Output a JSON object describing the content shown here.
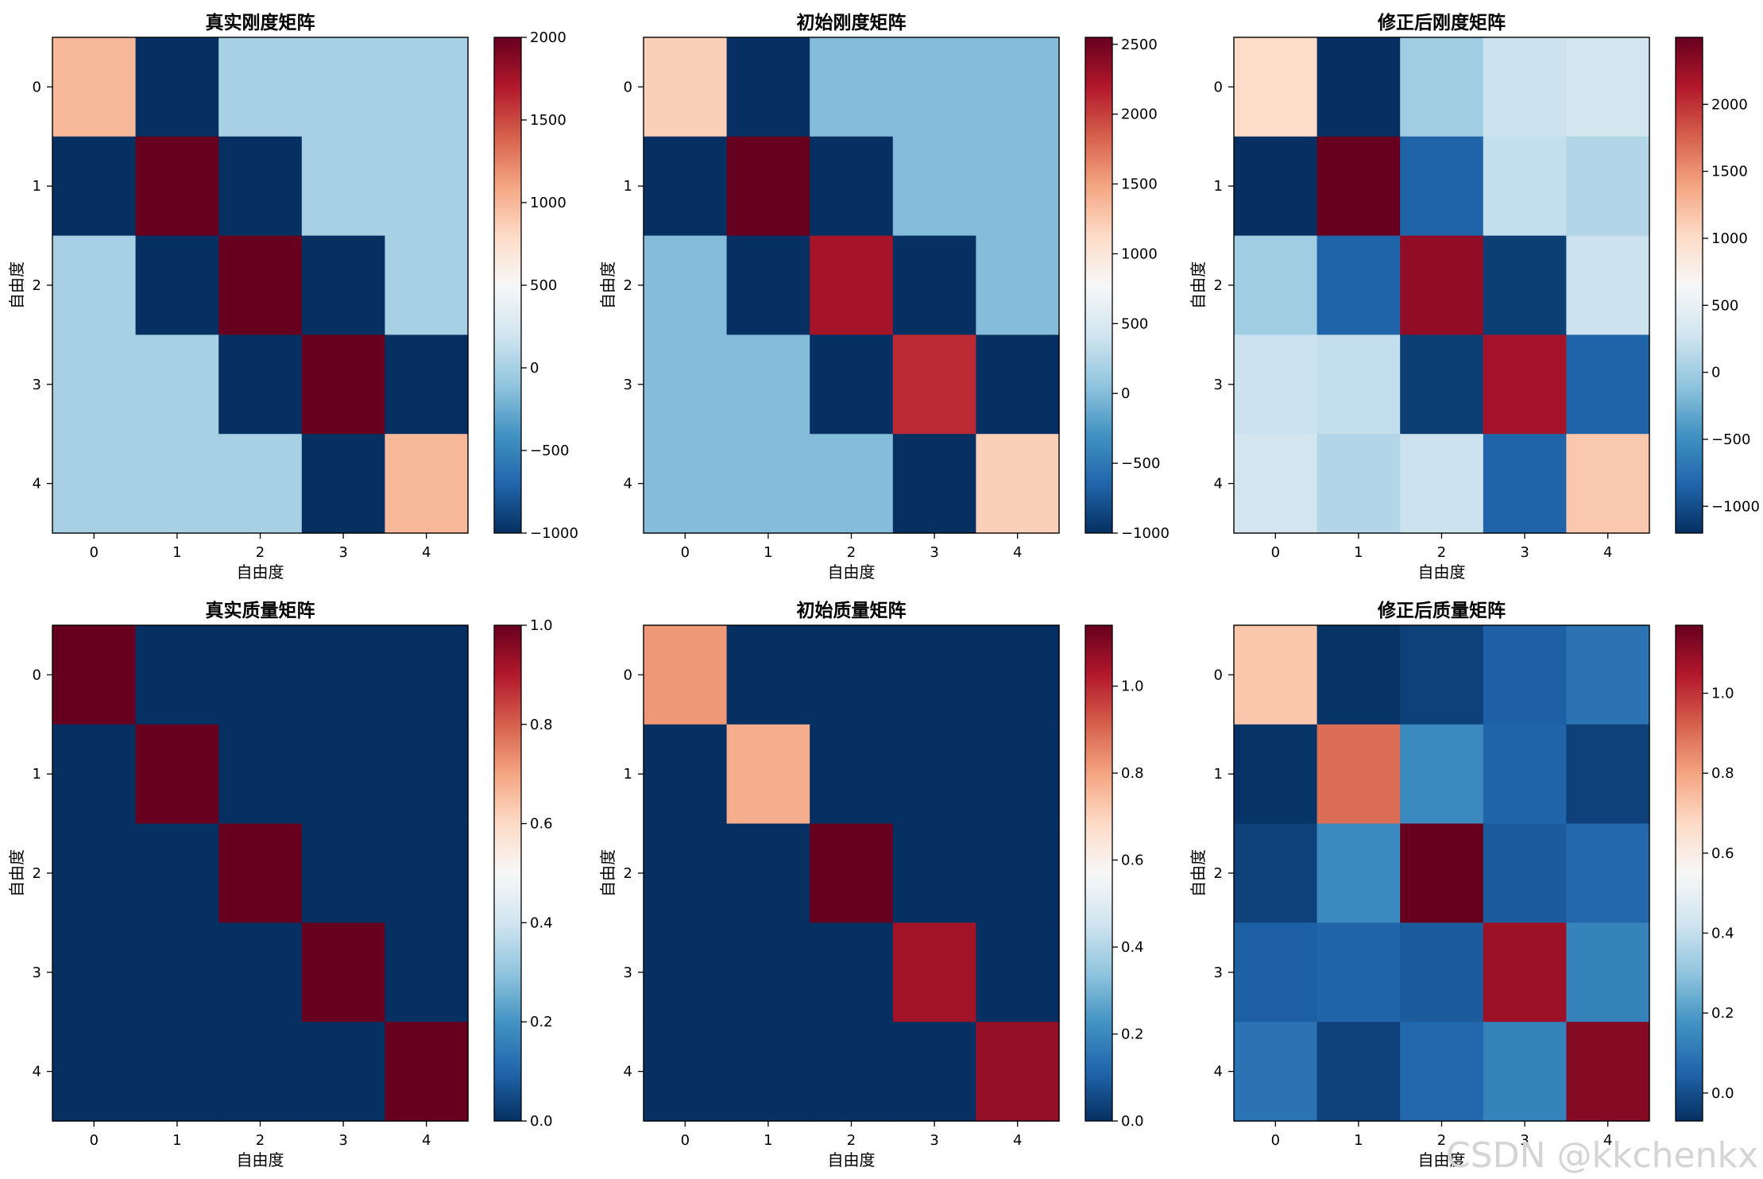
{
  "watermark": "CSDN @kkchenkx",
  "colormap": [
    "#053061",
    "#2166ac",
    "#4393c3",
    "#92c5de",
    "#d1e5f0",
    "#f7f7f7",
    "#fddbc7",
    "#f4a582",
    "#d6604d",
    "#b2182b",
    "#67001f"
  ],
  "chart_data": [
    {
      "type": "heatmap",
      "title": "真实刚度矩阵",
      "xlabel": "自由度",
      "ylabel": "自由度",
      "x_ticks": [
        "0",
        "1",
        "2",
        "3",
        "4"
      ],
      "y_ticks": [
        "0",
        "1",
        "2",
        "3",
        "4"
      ],
      "vmin": -1000,
      "vmax": 2000,
      "colorbar_ticks": [
        2000,
        1500,
        1000,
        500,
        0,
        -500,
        -1000
      ],
      "colorbar_labels": [
        "2000",
        "1500",
        "1000",
        "500",
        "0",
        "−500",
        "−1000"
      ],
      "values": [
        [
          1000,
          -1000,
          0,
          0,
          0
        ],
        [
          -1000,
          2000,
          -1000,
          0,
          0
        ],
        [
          0,
          -1000,
          2000,
          -1000,
          0
        ],
        [
          0,
          0,
          -1000,
          2000,
          -1000
        ],
        [
          0,
          0,
          0,
          -1000,
          1000
        ]
      ]
    },
    {
      "type": "heatmap",
      "title": "初始刚度矩阵",
      "xlabel": "自由度",
      "ylabel": "自由度",
      "x_ticks": [
        "0",
        "1",
        "2",
        "3",
        "4"
      ],
      "y_ticks": [
        "0",
        "1",
        "2",
        "3",
        "4"
      ],
      "vmin": -1000,
      "vmax": 2550,
      "colorbar_ticks": [
        2500,
        2000,
        1500,
        1000,
        500,
        0,
        -500,
        -1000
      ],
      "colorbar_labels": [
        "2500",
        "2000",
        "1500",
        "1000",
        "500",
        "0",
        "−500",
        "−1000"
      ],
      "values": [
        [
          1200,
          -1000,
          0,
          0,
          0
        ],
        [
          -1000,
          2550,
          -1000,
          0,
          0
        ],
        [
          0,
          -1000,
          2250,
          -1000,
          0
        ],
        [
          0,
          0,
          -1000,
          2100,
          -1000
        ],
        [
          0,
          0,
          0,
          -1000,
          1200
        ]
      ]
    },
    {
      "type": "heatmap",
      "title": "修正后刚度矩阵",
      "xlabel": "自由度",
      "ylabel": "自由度",
      "x_ticks": [
        "0",
        "1",
        "2",
        "3",
        "4"
      ],
      "y_ticks": [
        "0",
        "1",
        "2",
        "3",
        "4"
      ],
      "vmin": -1200,
      "vmax": 2500,
      "colorbar_ticks": [
        2000,
        1500,
        1000,
        500,
        0,
        -500,
        -1000
      ],
      "colorbar_labels": [
        "2000",
        "1500",
        "1000",
        "500",
        "0",
        "−500",
        "−1000"
      ],
      "values": [
        [
          1000,
          -1200,
          0,
          250,
          300
        ],
        [
          -1200,
          2500,
          -850,
          200,
          100
        ],
        [
          0,
          -850,
          2300,
          -1100,
          250
        ],
        [
          250,
          200,
          -1100,
          2200,
          -850
        ],
        [
          300,
          100,
          250,
          -850,
          1150
        ]
      ]
    },
    {
      "type": "heatmap",
      "title": "真实质量矩阵",
      "xlabel": "自由度",
      "ylabel": "自由度",
      "x_ticks": [
        "0",
        "1",
        "2",
        "3",
        "4"
      ],
      "y_ticks": [
        "0",
        "1",
        "2",
        "3",
        "4"
      ],
      "vmin": 0,
      "vmax": 1,
      "colorbar_ticks": [
        1.0,
        0.8,
        0.6,
        0.4,
        0.2,
        0.0
      ],
      "colorbar_labels": [
        "1.0",
        "0.8",
        "0.6",
        "0.4",
        "0.2",
        "0.0"
      ],
      "values": [
        [
          1,
          0,
          0,
          0,
          0
        ],
        [
          0,
          1,
          0,
          0,
          0
        ],
        [
          0,
          0,
          1,
          0,
          0
        ],
        [
          0,
          0,
          0,
          1,
          0
        ],
        [
          0,
          0,
          0,
          0,
          1
        ]
      ]
    },
    {
      "type": "heatmap",
      "title": "初始质量矩阵",
      "xlabel": "自由度",
      "ylabel": "自由度",
      "x_ticks": [
        "0",
        "1",
        "2",
        "3",
        "4"
      ],
      "y_ticks": [
        "0",
        "1",
        "2",
        "3",
        "4"
      ],
      "vmin": 0,
      "vmax": 1.14,
      "colorbar_ticks": [
        1.0,
        0.8,
        0.6,
        0.4,
        0.2,
        0.0
      ],
      "colorbar_labels": [
        "1.0",
        "0.8",
        "0.6",
        "0.4",
        "0.2",
        "0.0"
      ],
      "values": [
        [
          0.82,
          0,
          0,
          0,
          0
        ],
        [
          0,
          0.78,
          0,
          0,
          0
        ],
        [
          0,
          0,
          1.14,
          0,
          0
        ],
        [
          0,
          0,
          0,
          1.05,
          0
        ],
        [
          0,
          0,
          0,
          0,
          1.07
        ]
      ]
    },
    {
      "type": "heatmap",
      "title": "修正后质量矩阵",
      "xlabel": "自由度",
      "ylabel": "自由度",
      "x_ticks": [
        "0",
        "1",
        "2",
        "3",
        "4"
      ],
      "y_ticks": [
        "0",
        "1",
        "2",
        "3",
        "4"
      ],
      "vmin": -0.07,
      "vmax": 1.17,
      "colorbar_ticks": [
        1.0,
        0.8,
        0.6,
        0.4,
        0.2,
        0.0
      ],
      "colorbar_labels": [
        "1.0",
        "0.8",
        "0.6",
        "0.4",
        "0.2",
        "0.0"
      ],
      "values": [
        [
          0.72,
          -0.06,
          -0.03,
          0.04,
          0.09
        ],
        [
          -0.06,
          0.9,
          0.15,
          0.05,
          -0.03
        ],
        [
          -0.03,
          0.15,
          1.17,
          0.03,
          0.06
        ],
        [
          0.04,
          0.05,
          0.03,
          1.08,
          0.13
        ],
        [
          0.09,
          -0.03,
          0.06,
          0.13,
          1.12
        ]
      ]
    }
  ]
}
